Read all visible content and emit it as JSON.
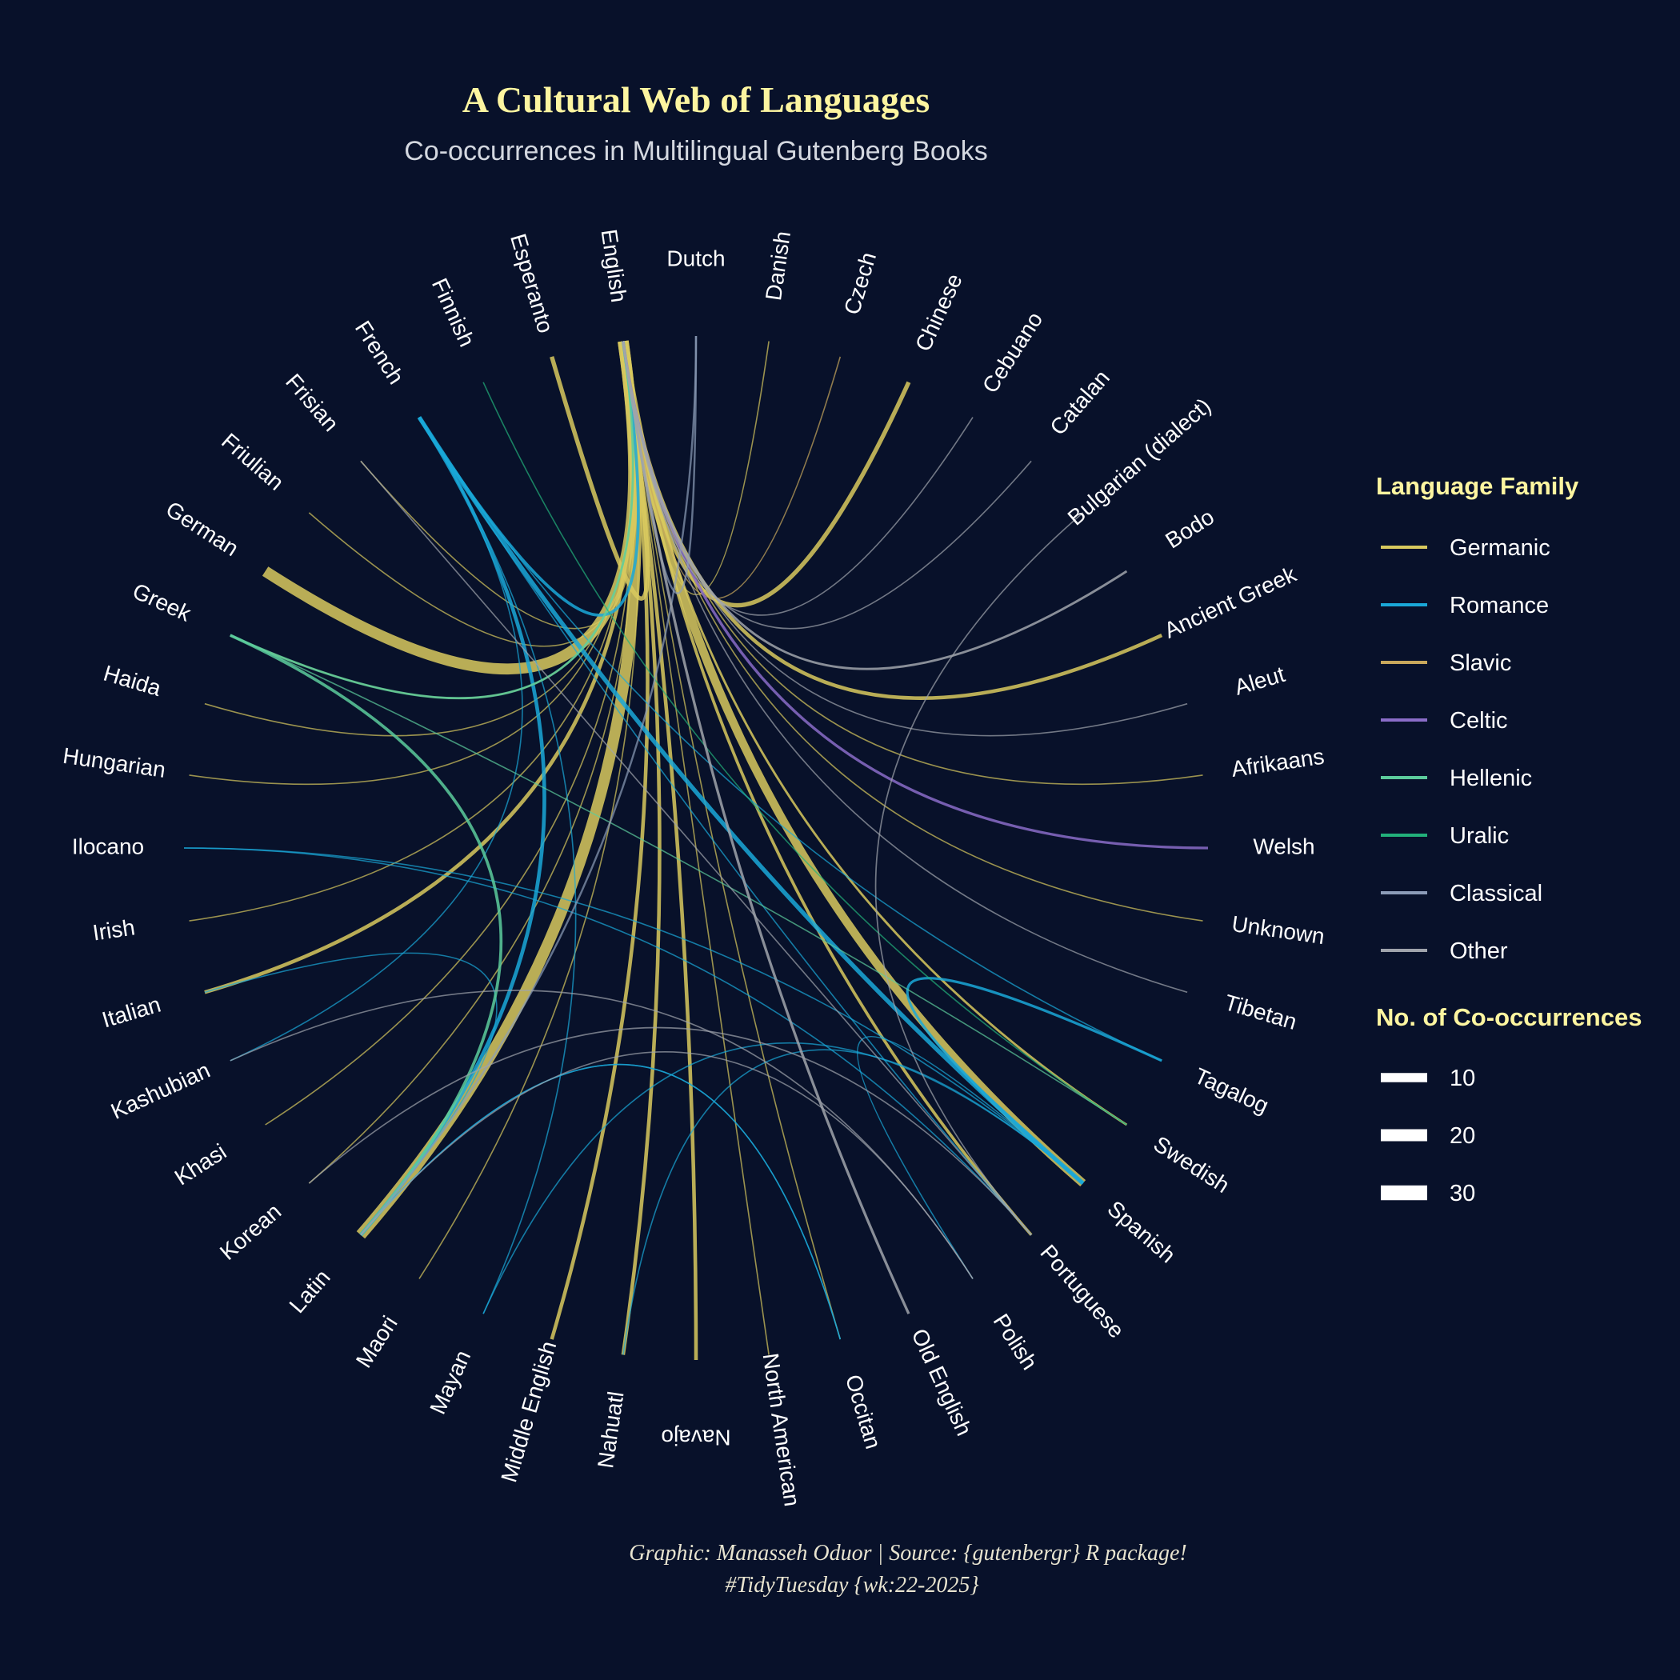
{
  "title": "A Cultural Web of Languages",
  "subtitle": "Co-occurrences in Multilingual Gutenberg Books",
  "caption_line1": "Graphic: Manasseh Oduor | Source: {gutenbergr} R package!",
  "caption_line2": "#TidyTuesday {wk:22-2025}",
  "colors": {
    "background": "#08112a",
    "title": "#fdf5a0",
    "subtitle": "#d4d8e0",
    "label": "#ffffff",
    "legend_title": "#fdf5a0"
  },
  "legend": {
    "family_title": "Language Family",
    "families": [
      {
        "name": "Germanic",
        "color": "#d8c95e"
      },
      {
        "name": "Romance",
        "color": "#1aa8d8"
      },
      {
        "name": "Slavic",
        "color": "#c9a85c"
      },
      {
        "name": "Celtic",
        "color": "#8a6cc8"
      },
      {
        "name": "Hellenic",
        "color": "#5ccc9c"
      },
      {
        "name": "Uralic",
        "color": "#22b07a"
      },
      {
        "name": "Classical",
        "color": "#8c9cb8"
      },
      {
        "name": "Other",
        "color": "#a0a4ac"
      }
    ],
    "size_title": "No. of Co-occurrences",
    "sizes": [
      {
        "label": "10",
        "value": 10
      },
      {
        "label": "20",
        "value": 20
      },
      {
        "label": "30",
        "value": 30
      }
    ]
  },
  "chart_data": {
    "type": "chord",
    "nodes": [
      "Dutch",
      "Danish",
      "Czech",
      "Chinese",
      "Cebuano",
      "Catalan",
      "Bulgarian (dialect)",
      "Bodo",
      "Ancient Greek",
      "Aleut",
      "Afrikaans",
      "Welsh",
      "Unknown",
      "Tibetan",
      "Tagalog",
      "Swedish",
      "Spanish",
      "Portuguese",
      "Polish",
      "Old English",
      "Occitan",
      "North American",
      "Navajo",
      "Nahuatl",
      "Middle English",
      "Mayan",
      "Maori",
      "Latin",
      "Korean",
      "Khasi",
      "Kashubian",
      "Italian",
      "Irish",
      "Ilocano",
      "Hungarian",
      "Haida",
      "Greek",
      "German",
      "Friulian",
      "Frisian",
      "French",
      "Finnish",
      "Esperanto",
      "English"
    ],
    "links": [
      {
        "source": "English",
        "target": "German",
        "family": "Germanic",
        "value": 30
      },
      {
        "source": "English",
        "target": "Latin",
        "family": "Germanic",
        "value": 30
      },
      {
        "source": "English",
        "target": "Spanish",
        "family": "Germanic",
        "value": 22
      },
      {
        "source": "English",
        "target": "Nahuatl",
        "family": "Germanic",
        "value": 8
      },
      {
        "source": "English",
        "target": "Navajo",
        "family": "Germanic",
        "value": 8
      },
      {
        "source": "English",
        "target": "Middle English",
        "family": "Germanic",
        "value": 8
      },
      {
        "source": "English",
        "target": "Chinese",
        "family": "Germanic",
        "value": 10
      },
      {
        "source": "English",
        "target": "Ancient Greek",
        "family": "Germanic",
        "value": 8
      },
      {
        "source": "English",
        "target": "Italian",
        "family": "Germanic",
        "value": 8
      },
      {
        "source": "English",
        "target": "Portuguese",
        "family": "Germanic",
        "value": 6
      },
      {
        "source": "English",
        "target": "Swedish",
        "family": "Germanic",
        "value": 4
      },
      {
        "source": "English",
        "target": "Esperanto",
        "family": "Germanic",
        "value": 10
      },
      {
        "source": "English",
        "target": "Greek",
        "family": "Germanic",
        "value": 2
      },
      {
        "source": "English",
        "target": "Haida",
        "family": "Germanic",
        "value": 1
      },
      {
        "source": "English",
        "target": "Hungarian",
        "family": "Germanic",
        "value": 1
      },
      {
        "source": "English",
        "target": "Irish",
        "family": "Germanic",
        "value": 1
      },
      {
        "source": "English",
        "target": "Korean",
        "family": "Germanic",
        "value": 1
      },
      {
        "source": "English",
        "target": "Khasi",
        "family": "Germanic",
        "value": 1
      },
      {
        "source": "English",
        "target": "Maori",
        "family": "Germanic",
        "value": 1
      },
      {
        "source": "English",
        "target": "Unknown",
        "family": "Germanic",
        "value": 1
      },
      {
        "source": "English",
        "target": "Afrikaans",
        "family": "Germanic",
        "value": 1
      },
      {
        "source": "English",
        "target": "Friulian",
        "family": "Germanic",
        "value": 1
      },
      {
        "source": "English",
        "target": "Frisian",
        "family": "Germanic",
        "value": 1
      },
      {
        "source": "English",
        "target": "Danish",
        "family": "Germanic",
        "value": 1
      },
      {
        "source": "English",
        "target": "Occitan",
        "family": "Germanic",
        "value": 1
      },
      {
        "source": "English",
        "target": "North American",
        "family": "Germanic",
        "value": 1
      },
      {
        "source": "Czech",
        "target": "English",
        "family": "Slavic",
        "value": 1
      },
      {
        "source": "French",
        "target": "Spanish",
        "family": "Romance",
        "value": 10
      },
      {
        "source": "French",
        "target": "Latin",
        "family": "Romance",
        "value": 8
      },
      {
        "source": "French",
        "target": "English",
        "family": "Romance",
        "value": 6
      },
      {
        "source": "French",
        "target": "Portuguese",
        "family": "Romance",
        "value": 1
      },
      {
        "source": "French",
        "target": "Mayan",
        "family": "Romance",
        "value": 1
      },
      {
        "source": "French",
        "target": "Tagalog",
        "family": "Romance",
        "value": 1
      },
      {
        "source": "French",
        "target": "Kashubian",
        "family": "Romance",
        "value": 1
      },
      {
        "source": "Italian",
        "target": "Latin",
        "family": "Romance",
        "value": 1
      },
      {
        "source": "Spanish",
        "target": "Tagalog",
        "family": "Romance",
        "value": 5
      },
      {
        "source": "Spanish",
        "target": "Nahuatl",
        "family": "Romance",
        "value": 1
      },
      {
        "source": "Spanish",
        "target": "Mayan",
        "family": "Romance",
        "value": 1
      },
      {
        "source": "Spanish",
        "target": "Polish",
        "family": "Romance",
        "value": 1
      },
      {
        "source": "Ilocano",
        "target": "Spanish",
        "family": "Romance",
        "value": 1
      },
      {
        "source": "Occitan",
        "target": "Latin",
        "family": "Romance",
        "value": 1
      },
      {
        "source": "Portuguese",
        "target": "Ilocano",
        "family": "Romance",
        "value": 1
      },
      {
        "source": "Latin",
        "target": "Occitan",
        "family": "Romance",
        "value": 1
      },
      {
        "source": "English",
        "target": "Welsh",
        "family": "Celtic",
        "value": 5
      },
      {
        "source": "Greek",
        "target": "Latin",
        "family": "Hellenic",
        "value": 6
      },
      {
        "source": "Greek",
        "target": "English",
        "family": "Hellenic",
        "value": 4
      },
      {
        "source": "Greek",
        "target": "Swedish",
        "family": "Hellenic",
        "value": 1
      },
      {
        "source": "Finnish",
        "target": "Swedish",
        "family": "Uralic",
        "value": 1
      },
      {
        "source": "Dutch",
        "target": "Latin",
        "family": "Classical",
        "value": 3
      },
      {
        "source": "Dutch",
        "target": "English",
        "family": "Classical",
        "value": 3
      },
      {
        "source": "Old English",
        "target": "English",
        "family": "Other",
        "value": 5
      },
      {
        "source": "Bodo",
        "target": "English",
        "family": "Other",
        "value": 4
      },
      {
        "source": "Cebuano",
        "target": "English",
        "family": "Other",
        "value": 1
      },
      {
        "source": "Catalan",
        "target": "English",
        "family": "Other",
        "value": 1
      },
      {
        "source": "Bulgarian (dialect)",
        "target": "Portuguese",
        "family": "Other",
        "value": 1
      },
      {
        "source": "Aleut",
        "target": "English",
        "family": "Other",
        "value": 1
      },
      {
        "source": "Tibetan",
        "target": "English",
        "family": "Other",
        "value": 1
      },
      {
        "source": "Kashubian",
        "target": "Polish",
        "family": "Other",
        "value": 1
      },
      {
        "source": "Korean",
        "target": "Portuguese",
        "family": "Other",
        "value": 1
      },
      {
        "source": "Frisian",
        "target": "Portuguese",
        "family": "Other",
        "value": 1
      },
      {
        "source": "Latin",
        "target": "Polish",
        "family": "Other",
        "value": 1
      }
    ]
  }
}
